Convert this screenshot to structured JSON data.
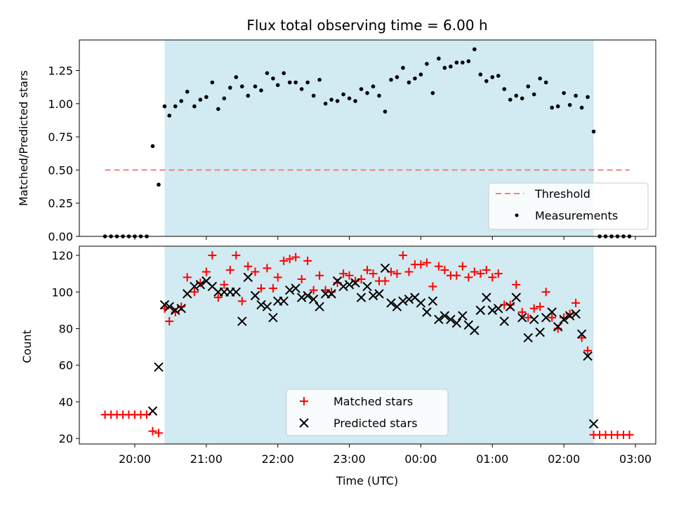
{
  "chart_data": [
    {
      "type": "scatter",
      "title": "Flux total observing time = 6.00 h",
      "ylabel": "Matched/Predicted stars",
      "xlabel": "",
      "ylim": [
        0,
        1.48
      ],
      "yticks": [
        "0.00",
        "0.25",
        "0.50",
        "0.75",
        "1.00",
        "1.25"
      ],
      "shaded_interval": [
        "20:25",
        "02:25"
      ],
      "shade_color": "#add8e6",
      "threshold": {
        "name": "Threshold",
        "value": 0.5,
        "x_start": "19:35",
        "x_end": "02:55",
        "color": "#f08080"
      },
      "legend": {
        "location": "lower right",
        "entries": [
          "Threshold",
          "Measurements"
        ]
      },
      "series": [
        {
          "name": "Measurements",
          "color": "#000000",
          "marker": "dot",
          "points": [
            [
              "19:35",
              0
            ],
            [
              "19:40",
              0
            ],
            [
              "19:45",
              0
            ],
            [
              "19:50",
              0
            ],
            [
              "19:55",
              0
            ],
            [
              "20:00",
              0
            ],
            [
              "20:05",
              0
            ],
            [
              "20:10",
              0
            ],
            [
              "20:15",
              0.68
            ],
            [
              "20:20",
              0.39
            ],
            [
              "20:25",
              0.98
            ],
            [
              "20:29",
              0.91
            ],
            [
              "20:34",
              0.98
            ],
            [
              "20:39",
              1.02
            ],
            [
              "20:44",
              1.09
            ],
            [
              "20:50",
              0.98
            ],
            [
              "20:55",
              1.03
            ],
            [
              "21:00",
              1.05
            ],
            [
              "21:05",
              1.16
            ],
            [
              "21:10",
              0.96
            ],
            [
              "21:15",
              1.04
            ],
            [
              "21:20",
              1.12
            ],
            [
              "21:25",
              1.2
            ],
            [
              "21:30",
              1.13
            ],
            [
              "21:35",
              1.06
            ],
            [
              "21:41",
              1.13
            ],
            [
              "21:46",
              1.1
            ],
            [
              "21:51",
              1.23
            ],
            [
              "21:56",
              1.19
            ],
            [
              "22:00",
              1.14
            ],
            [
              "22:05",
              1.23
            ],
            [
              "22:10",
              1.16
            ],
            [
              "22:15",
              1.16
            ],
            [
              "22:20",
              1.11
            ],
            [
              "22:25",
              1.16
            ],
            [
              "22:30",
              1.06
            ],
            [
              "22:35",
              1.18
            ],
            [
              "22:40",
              1.0
            ],
            [
              "22:45",
              1.03
            ],
            [
              "22:50",
              1.02
            ],
            [
              "22:55",
              1.07
            ],
            [
              "23:00",
              1.04
            ],
            [
              "23:05",
              1.02
            ],
            [
              "23:10",
              1.11
            ],
            [
              "23:15",
              1.08
            ],
            [
              "23:20",
              1.13
            ],
            [
              "23:25",
              1.06
            ],
            [
              "23:30",
              0.94
            ],
            [
              "23:35",
              1.18
            ],
            [
              "23:40",
              1.2
            ],
            [
              "23:45",
              1.27
            ],
            [
              "23:50",
              1.16
            ],
            [
              "23:55",
              1.19
            ],
            [
              "00:00",
              1.22
            ],
            [
              "00:05",
              1.3
            ],
            [
              "00:10",
              1.08
            ],
            [
              "00:15",
              1.34
            ],
            [
              "00:20",
              1.27
            ],
            [
              "00:25",
              1.28
            ],
            [
              "00:30",
              1.31
            ],
            [
              "00:35",
              1.31
            ],
            [
              "00:40",
              1.32
            ],
            [
              "00:45",
              1.41
            ],
            [
              "00:50",
              1.22
            ],
            [
              "00:55",
              1.17
            ],
            [
              "01:00",
              1.2
            ],
            [
              "01:05",
              1.21
            ],
            [
              "01:10",
              1.11
            ],
            [
              "01:15",
              1.03
            ],
            [
              "01:20",
              1.06
            ],
            [
              "01:25",
              1.04
            ],
            [
              "01:30",
              1.13
            ],
            [
              "01:35",
              1.07
            ],
            [
              "01:40",
              1.19
            ],
            [
              "01:45",
              1.16
            ],
            [
              "01:50",
              0.97
            ],
            [
              "01:55",
              0.98
            ],
            [
              "02:00",
              1.08
            ],
            [
              "02:05",
              0.99
            ],
            [
              "02:10",
              1.06
            ],
            [
              "02:15",
              0.97
            ],
            [
              "02:20",
              1.05
            ],
            [
              "02:25",
              0.79
            ],
            [
              "02:30",
              0
            ],
            [
              "02:35",
              0
            ],
            [
              "02:40",
              0
            ],
            [
              "02:45",
              0
            ],
            [
              "02:50",
              0
            ],
            [
              "02:55",
              0
            ]
          ]
        }
      ]
    },
    {
      "type": "scatter",
      "xlabel": "Time (UTC)",
      "ylabel": "Count",
      "ylim": [
        17,
        125
      ],
      "yticks": [
        "20",
        "40",
        "60",
        "80",
        "100",
        "120"
      ],
      "xticks": [
        "20:00",
        "21:00",
        "22:00",
        "23:00",
        "00:00",
        "01:00",
        "02:00",
        "03:00"
      ],
      "shaded_interval": [
        "20:25",
        "02:25"
      ],
      "shade_color": "#add8e6",
      "legend": {
        "location": "lower center",
        "entries": [
          "Matched stars",
          "Predicted stars"
        ]
      },
      "series": [
        {
          "name": "Matched stars",
          "color": "#ff0000",
          "marker": "plus",
          "points": [
            [
              "19:35",
              33
            ],
            [
              "19:40",
              33
            ],
            [
              "19:45",
              33
            ],
            [
              "19:50",
              33
            ],
            [
              "19:55",
              33
            ],
            [
              "20:00",
              33
            ],
            [
              "20:05",
              33
            ],
            [
              "20:10",
              33
            ],
            [
              "20:15",
              24
            ],
            [
              "20:20",
              23
            ],
            [
              "20:25",
              91
            ],
            [
              "20:29",
              84
            ],
            [
              "20:34",
              89
            ],
            [
              "20:39",
              92
            ],
            [
              "20:44",
              108
            ],
            [
              "20:50",
              100
            ],
            [
              "20:55",
              105
            ],
            [
              "21:00",
              111
            ],
            [
              "21:05",
              120
            ],
            [
              "21:10",
              97
            ],
            [
              "21:15",
              104
            ],
            [
              "21:20",
              112
            ],
            [
              "21:25",
              120
            ],
            [
              "21:30",
              95
            ],
            [
              "21:35",
              114
            ],
            [
              "21:41",
              111
            ],
            [
              "21:46",
              102
            ],
            [
              "21:51",
              113
            ],
            [
              "21:56",
              102
            ],
            [
              "22:00",
              108
            ],
            [
              "22:05",
              117
            ],
            [
              "22:10",
              118
            ],
            [
              "22:15",
              119
            ],
            [
              "22:20",
              107
            ],
            [
              "22:25",
              117
            ],
            [
              "22:30",
              101
            ],
            [
              "22:35",
              109
            ],
            [
              "22:40",
              101
            ],
            [
              "22:45",
              100
            ],
            [
              "22:50",
              105
            ],
            [
              "22:55",
              110
            ],
            [
              "23:00",
              109
            ],
            [
              "23:05",
              106
            ],
            [
              "23:10",
              107
            ],
            [
              "23:15",
              112
            ],
            [
              "23:20",
              110
            ],
            [
              "23:25",
              106
            ],
            [
              "23:30",
              106
            ],
            [
              "23:35",
              111
            ],
            [
              "23:40",
              110
            ],
            [
              "23:45",
              120
            ],
            [
              "23:50",
              111
            ],
            [
              "23:55",
              115
            ],
            [
              "00:00",
              115
            ],
            [
              "00:05",
              116
            ],
            [
              "00:10",
              103
            ],
            [
              "00:15",
              114
            ],
            [
              "00:20",
              112
            ],
            [
              "00:25",
              109
            ],
            [
              "00:30",
              109
            ],
            [
              "00:35",
              114
            ],
            [
              "00:40",
              108
            ],
            [
              "00:45",
              111
            ],
            [
              "00:50",
              110
            ],
            [
              "00:55",
              112
            ],
            [
              "01:00",
              108
            ],
            [
              "01:05",
              110
            ],
            [
              "01:10",
              93
            ],
            [
              "01:15",
              93
            ],
            [
              "01:20",
              104
            ],
            [
              "01:25",
              89
            ],
            [
              "01:30",
              86
            ],
            [
              "01:35",
              91
            ],
            [
              "01:40",
              92
            ],
            [
              "01:45",
              100
            ],
            [
              "01:50",
              86
            ],
            [
              "01:55",
              80
            ],
            [
              "02:00",
              86
            ],
            [
              "02:05",
              88
            ],
            [
              "02:10",
              94
            ],
            [
              "02:15",
              75
            ],
            [
              "02:20",
              68
            ],
            [
              "02:25",
              22
            ],
            [
              "02:30",
              22
            ],
            [
              "02:35",
              22
            ],
            [
              "02:40",
              22
            ],
            [
              "02:45",
              22
            ],
            [
              "02:50",
              22
            ],
            [
              "02:55",
              22
            ]
          ]
        },
        {
          "name": "Predicted stars",
          "color": "#000000",
          "marker": "x",
          "points": [
            [
              "20:15",
              35
            ],
            [
              "20:20",
              59
            ],
            [
              "20:25",
              93
            ],
            [
              "20:29",
              92
            ],
            [
              "20:34",
              90
            ],
            [
              "20:39",
              91
            ],
            [
              "20:44",
              99
            ],
            [
              "20:50",
              103
            ],
            [
              "20:55",
              104
            ],
            [
              "21:00",
              106
            ],
            [
              "21:05",
              103
            ],
            [
              "21:10",
              100
            ],
            [
              "21:15",
              100
            ],
            [
              "21:20",
              100
            ],
            [
              "21:25",
              100
            ],
            [
              "21:30",
              84
            ],
            [
              "21:35",
              108
            ],
            [
              "21:41",
              98
            ],
            [
              "21:46",
              93
            ],
            [
              "21:51",
              92
            ],
            [
              "21:56",
              86
            ],
            [
              "22:00",
              95
            ],
            [
              "22:05",
              95
            ],
            [
              "22:10",
              101
            ],
            [
              "22:15",
              102
            ],
            [
              "22:20",
              97
            ],
            [
              "22:25",
              98
            ],
            [
              "22:30",
              96
            ],
            [
              "22:35",
              92
            ],
            [
              "22:40",
              99
            ],
            [
              "22:45",
              99
            ],
            [
              "22:50",
              106
            ],
            [
              "22:55",
              103
            ],
            [
              "23:00",
              104
            ],
            [
              "23:05",
              105
            ],
            [
              "23:10",
              97
            ],
            [
              "23:15",
              103
            ],
            [
              "23:20",
              98
            ],
            [
              "23:25",
              99
            ],
            [
              "23:30",
              113
            ],
            [
              "23:35",
              94
            ],
            [
              "23:40",
              92
            ],
            [
              "23:45",
              95
            ],
            [
              "23:50",
              96
            ],
            [
              "23:55",
              97
            ],
            [
              "00:00",
              94
            ],
            [
              "00:05",
              89
            ],
            [
              "00:10",
              95
            ],
            [
              "00:15",
              85
            ],
            [
              "00:20",
              87
            ],
            [
              "00:25",
              85
            ],
            [
              "00:30",
              83
            ],
            [
              "00:35",
              87
            ],
            [
              "00:40",
              82
            ],
            [
              "00:45",
              79
            ],
            [
              "00:50",
              90
            ],
            [
              "00:55",
              97
            ],
            [
              "01:00",
              90
            ],
            [
              "01:05",
              91
            ],
            [
              "01:10",
              84
            ],
            [
              "01:15",
              92
            ],
            [
              "01:20",
              97
            ],
            [
              "01:25",
              86
            ],
            [
              "01:30",
              75
            ],
            [
              "01:35",
              85
            ],
            [
              "01:40",
              78
            ],
            [
              "01:45",
              86
            ],
            [
              "01:50",
              89
            ],
            [
              "01:55",
              81
            ],
            [
              "02:00",
              85
            ],
            [
              "02:05",
              87
            ],
            [
              "02:10",
              88
            ],
            [
              "02:15",
              77
            ],
            [
              "02:20",
              65
            ],
            [
              "02:25",
              28
            ]
          ]
        }
      ]
    }
  ]
}
